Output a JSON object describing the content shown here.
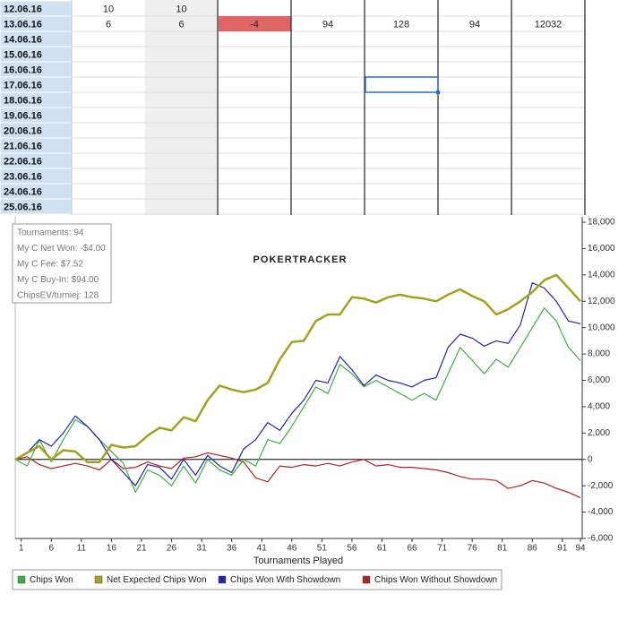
{
  "table": {
    "rows": [
      {
        "date": "12.06.16",
        "cells": [
          10,
          10
        ]
      },
      {
        "date": "13.06.16",
        "cells": [
          6,
          6,
          -4,
          94,
          128,
          94,
          12032
        ]
      },
      {
        "date": "14.06.16"
      },
      {
        "date": "15.06.16"
      },
      {
        "date": "16.06.16"
      },
      {
        "date": "17.06.16"
      },
      {
        "date": "18.06.16"
      },
      {
        "date": "19.06.16"
      },
      {
        "date": "20.06.16"
      },
      {
        "date": "21.06.16"
      },
      {
        "date": "22.06.16"
      },
      {
        "date": "23.06.16"
      },
      {
        "date": "24.06.16"
      },
      {
        "date": "25.06.16"
      }
    ]
  },
  "chart_data": {
    "type": "line",
    "watermark": "POKERTRACKER",
    "info": [
      "Tournaments: 94",
      "My C Net Won: -$4.00",
      "My C Fee: $7.52",
      "My C Buy-In: $94.00",
      "ChipsEV/turniej: 128"
    ],
    "xlabel": "Tournaments Played",
    "x": [
      0,
      2,
      4,
      6,
      8,
      10,
      12,
      14,
      16,
      18,
      20,
      22,
      24,
      26,
      28,
      30,
      32,
      34,
      36,
      38,
      40,
      42,
      44,
      46,
      48,
      50,
      52,
      54,
      56,
      58,
      60,
      62,
      64,
      66,
      68,
      70,
      72,
      74,
      76,
      78,
      80,
      82,
      84,
      86,
      88,
      90,
      92,
      94
    ],
    "xlim": [
      0,
      94
    ],
    "xticks": [
      1,
      6,
      11,
      16,
      21,
      26,
      31,
      36,
      41,
      46,
      51,
      56,
      61,
      66,
      71,
      76,
      81,
      86,
      91,
      94
    ],
    "ylim": [
      -6000,
      18000
    ],
    "yticks": [
      {
        "value": -6000,
        "label": "-6,000"
      },
      {
        "value": -4000,
        "label": "-4,000"
      },
      {
        "value": -2000,
        "label": "-2,000"
      },
      0,
      {
        "value": 2000,
        "label": "2,000"
      },
      {
        "value": 4000,
        "label": "4,000"
      },
      {
        "value": 6000,
        "label": "6,000"
      },
      {
        "value": 8000,
        "label": "8,000"
      },
      {
        "value": 10000,
        "label": "10,000"
      },
      {
        "value": 12000,
        "label": "12,000"
      },
      {
        "value": 14000,
        "label": "14,000"
      },
      {
        "value": 16000,
        "label": "16,000"
      },
      {
        "value": 18000,
        "label": "18,000"
      }
    ],
    "series": [
      {
        "name": "Chips Won",
        "color": "#3cb043",
        "values": [
          0,
          -500,
          1500,
          -200,
          1500,
          3000,
          2500,
          1500,
          600,
          -300,
          -2500,
          -800,
          -1200,
          -2000,
          -500,
          -1800,
          0,
          -800,
          -1200,
          0,
          -500,
          1500,
          1200,
          2500,
          4000,
          5500,
          5000,
          7200,
          6500,
          5500,
          6000,
          5500,
          5000,
          4500,
          5000,
          4500,
          6500,
          8500,
          7500,
          6500,
          7600,
          7000,
          8500,
          10000,
          11500,
          10500,
          8500,
          7500
        ]
      },
      {
        "name": "Net Expected Chips Won",
        "color": "#a3a21f",
        "values": [
          0,
          500,
          1000,
          0,
          700,
          600,
          -200,
          -200,
          1100,
          900,
          1000,
          1800,
          2400,
          2200,
          3200,
          2900,
          4500,
          5600,
          5300,
          5100,
          5300,
          5800,
          7600,
          8900,
          9000,
          10500,
          11000,
          11000,
          12300,
          12200,
          11900,
          12300,
          12500,
          12300,
          12200,
          12000,
          12500,
          12900,
          12400,
          12000,
          11000,
          11400,
          12000,
          12700,
          13600,
          14000,
          13000,
          12000
        ]
      },
      {
        "name": "Chips Won With Showdown",
        "color": "#2424a8",
        "values": [
          0,
          500,
          1500,
          1000,
          2000,
          3300,
          2500,
          1500,
          0,
          -1000,
          -2000,
          -400,
          -600,
          -1500,
          0,
          -1200,
          300,
          -500,
          -1000,
          800,
          1500,
          2800,
          2200,
          3500,
          4500,
          6000,
          5800,
          7800,
          6800,
          5600,
          6400,
          6000,
          5800,
          5500,
          6000,
          6200,
          8500,
          9500,
          9200,
          8600,
          9000,
          8800,
          10200,
          13400,
          13000,
          12000,
          10500,
          10300
        ]
      },
      {
        "name": "Chips Won Without Showdown",
        "color": "#b22222",
        "values": [
          0,
          200,
          -400,
          -700,
          -500,
          -300,
          -500,
          -800,
          0,
          -700,
          -600,
          -200,
          -500,
          -700,
          100,
          200,
          500,
          300,
          100,
          -200,
          -1400,
          -1700,
          -500,
          -600,
          -400,
          -500,
          -300,
          -500,
          -200,
          0,
          -500,
          -400,
          -600,
          -600,
          -700,
          -800,
          -1000,
          -1300,
          -1500,
          -1500,
          -1600,
          -2200,
          -2000,
          -1600,
          -1800,
          -2200,
          -2500,
          -2900
        ]
      }
    ]
  }
}
